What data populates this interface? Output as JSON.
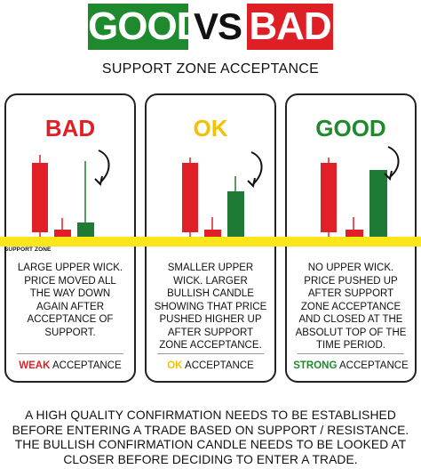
{
  "header": {
    "good": "GOOD",
    "vs": "VS",
    "bad": "BAD"
  },
  "subtitle": "SUPPORT ZONE ACCEPTANCE",
  "support_zone_label": "SUPPORT ZONE",
  "colors": {
    "bullish": "#1e7a34",
    "bearish": "#e01f26",
    "good": "#1f8a2d",
    "bad": "#df1f26",
    "ok": "#f2c200",
    "support": "#ffe61a"
  },
  "cards": [
    {
      "title": "BAD",
      "title_color": "#df1f26",
      "description": "LARGE UPPER WICK. PRICE MOVED ALL THE WAY DOWN AGAIN AFTER ACCEPTANCE OF SUPPORT.",
      "verdict_keyword": "WEAK",
      "verdict_rest": " ACCEPTANCE"
    },
    {
      "title": "OK",
      "title_color": "#f2c200",
      "description": "SMALLER UPPER WICK. LARGER BULLISH CANDLE SHOWING THAT PRICE PUSHED HIGHER UP AFTER SUPPORT ZONE ACCEPTANCE.",
      "verdict_keyword": "OK",
      "verdict_rest": " ACCEPTANCE"
    },
    {
      "title": "GOOD",
      "title_color": "#1f8a2d",
      "description": "NO UPPER WICK. PRICE PUSHED UP AFTER SUPPORT ZONE ACCEPTANCE AND CLOSED AT THE ABSOLUT TOP OF THE TIME PERIOD.",
      "verdict_keyword": "STRONG",
      "verdict_rest": " ACCEPTANCE"
    }
  ],
  "footer": [
    "A HIGH QUALITY CONFIRMATION NEEDS TO BE ESTABLISHED",
    "BEFORE ENTERING A TRADE BASED ON SUPPORT / RESISTANCE.",
    "THE BULLISH CONFIRMATION CANDLE NEEDS TO BE LOOKED AT",
    "CLOSER BEFORE DECIDING TO ENTER A TRADE."
  ]
}
